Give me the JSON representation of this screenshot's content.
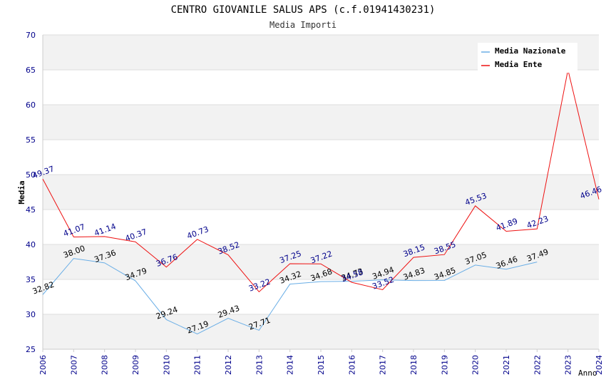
{
  "chart_data": {
    "type": "line",
    "title": "CENTRO GIOVANILE SALUS APS (c.f.01941430231)",
    "subtitle": "Media Importi",
    "xlabel": "Anno",
    "ylabel": "Media",
    "ylim": [
      25,
      70
    ],
    "y_ticks": [
      "25",
      "30",
      "35",
      "40",
      "45",
      "50",
      "55",
      "60",
      "65",
      "70"
    ],
    "categories": [
      "2006",
      "2007",
      "2008",
      "2009",
      "2010",
      "2011",
      "2012",
      "2013",
      "2014",
      "2015",
      "2016",
      "2017",
      "2018",
      "2019",
      "2020",
      "2021",
      "2022",
      "2023",
      "2024"
    ],
    "legend_position": "top-right",
    "series": [
      {
        "name": "Media Nazionale",
        "color": "#6aaee6",
        "values": [
          32.82,
          38.0,
          37.36,
          34.79,
          29.24,
          27.19,
          29.43,
          27.71,
          34.32,
          34.68,
          34.73,
          34.94,
          34.83,
          34.85,
          37.05,
          36.46,
          37.49,
          null,
          null
        ],
        "labels": [
          "32.82",
          "38.00",
          "37.36",
          "34.79",
          "29.24",
          "27.19",
          "29.43",
          "27.71",
          "34.32",
          "34.68",
          "34.73",
          "34.94",
          "34.83",
          "34.85",
          "37.05",
          "36.46",
          "37.49",
          "",
          ""
        ]
      },
      {
        "name": "Media Ente",
        "color": "#ee1111",
        "values": [
          49.37,
          41.07,
          41.14,
          40.37,
          36.76,
          40.73,
          38.52,
          33.22,
          37.25,
          37.22,
          34.58,
          33.52,
          38.15,
          38.55,
          45.53,
          41.89,
          42.23,
          65.0,
          46.46
        ],
        "labels": [
          "49.37",
          "41.07",
          "41.14",
          "40.37",
          "36.76",
          "40.73",
          "38.52",
          "33.22",
          "37.25",
          "37.22",
          "34.58",
          "33.52",
          "38.15",
          "38.55",
          "45.53",
          "41.89",
          "42.23",
          "",
          "46.46"
        ]
      }
    ]
  }
}
